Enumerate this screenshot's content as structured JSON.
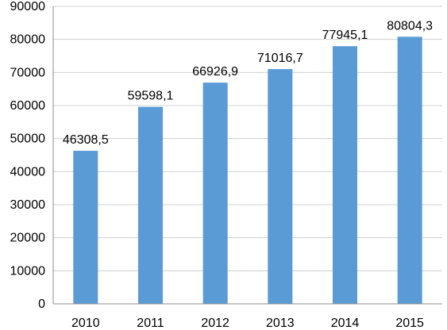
{
  "chart_data": {
    "type": "bar",
    "title": "",
    "xlabel": "",
    "ylabel": "",
    "categories": [
      "2010",
      "2011",
      "2012",
      "2013",
      "2014",
      "2015"
    ],
    "values": [
      46308.5,
      59598.1,
      66926.9,
      71016.7,
      77945.1,
      80804.3
    ],
    "data_labels": [
      "46308,5",
      "59598,1",
      "66926,9",
      "71016,7",
      "77945,1",
      "80804,3"
    ],
    "yticks": [
      "0",
      "10000",
      "20000",
      "30000",
      "40000",
      "50000",
      "60000",
      "70000",
      "80000",
      "90000"
    ],
    "ylim": [
      0,
      90000
    ],
    "grid": true,
    "legend": "none",
    "bar_color": "#5b9bd5"
  }
}
